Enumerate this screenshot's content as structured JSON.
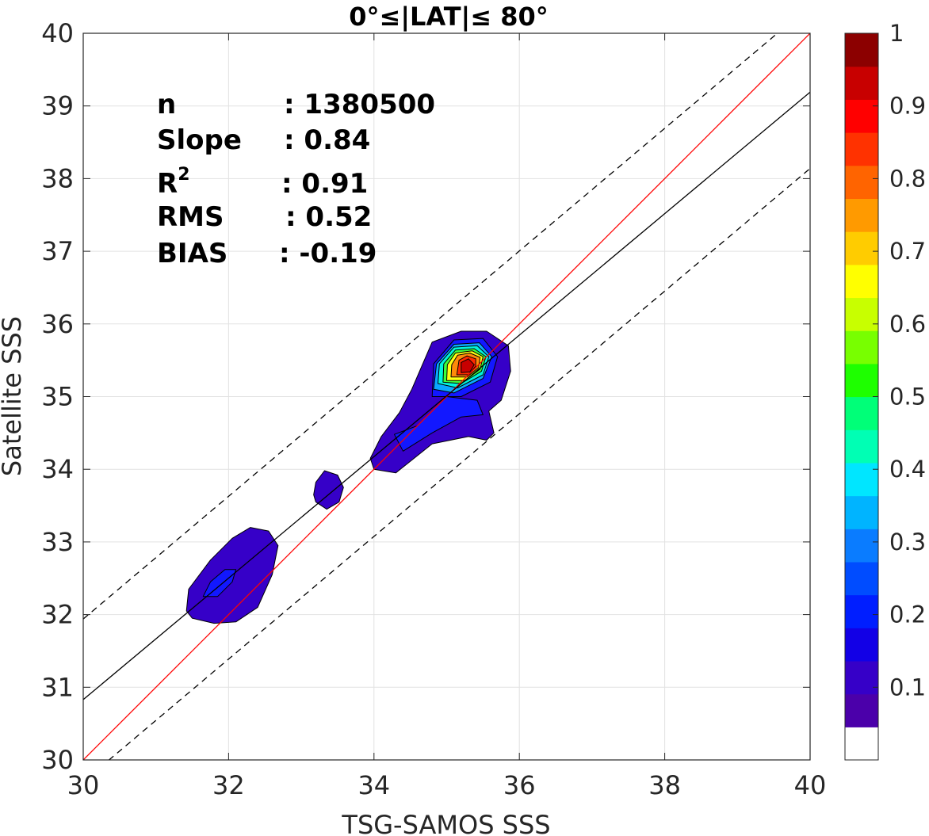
{
  "chart_data": {
    "type": "contour",
    "title": "0°≤|LAT|≤ 80°",
    "xlabel": "TSG-SAMOS SSS",
    "ylabel": "Satellite SSS",
    "xlim": [
      30,
      40
    ],
    "ylim": [
      30,
      40
    ],
    "xticks": [
      "30",
      "32",
      "34",
      "36",
      "38",
      "40"
    ],
    "yticks": [
      "30",
      "31",
      "32",
      "33",
      "34",
      "35",
      "36",
      "37",
      "38",
      "39",
      "40"
    ],
    "grid": true,
    "stats": [
      {
        "label": "n",
        "value": ": 1380500"
      },
      {
        "label": "Slope",
        "value": ": 0.84"
      },
      {
        "label": "R",
        "sup": "2",
        "value": ": 0.91"
      },
      {
        "label": "RMS",
        "value": ": 0.52"
      },
      {
        "label": "BIAS",
        "value": ": -0.19"
      }
    ],
    "lines": {
      "one_to_one": {
        "color": "#ff0000",
        "x": [
          30,
          40
        ],
        "y": [
          30,
          40
        ]
      },
      "regression": {
        "color": "#000000",
        "x": [
          30,
          40
        ],
        "y": [
          30.83,
          39.19
        ]
      },
      "upper_bound": {
        "color": "#000000",
        "style": "dashed",
        "x": [
          30,
          40
        ],
        "y": [
          31.94,
          40.38
        ]
      },
      "lower_bound": {
        "color": "#000000",
        "style": "dashed",
        "x": [
          30,
          40
        ],
        "y": [
          29.7,
          38.14
        ]
      }
    },
    "contour_levels": [
      {
        "level": 0.05,
        "color": "#3600c8",
        "polygons": [
          [
            [
              31.5,
              31.95
            ],
            [
              31.8,
              31.88
            ],
            [
              32.1,
              31.9
            ],
            [
              32.4,
              32.1
            ],
            [
              32.6,
              32.55
            ],
            [
              32.68,
              32.95
            ],
            [
              32.55,
              33.15
            ],
            [
              32.3,
              33.2
            ],
            [
              32.05,
              33.05
            ],
            [
              31.75,
              32.75
            ],
            [
              31.45,
              32.35
            ],
            [
              31.42,
              32.05
            ]
          ],
          [
            [
              33.2,
              33.55
            ],
            [
              33.35,
              33.45
            ],
            [
              33.52,
              33.55
            ],
            [
              33.58,
              33.75
            ],
            [
              33.5,
              33.92
            ],
            [
              33.32,
              33.98
            ],
            [
              33.2,
              33.82
            ],
            [
              33.17,
              33.65
            ]
          ],
          [
            [
              34.0,
              34.0
            ],
            [
              34.3,
              33.95
            ],
            [
              34.8,
              34.35
            ],
            [
              35.3,
              34.45
            ],
            [
              35.55,
              34.4
            ],
            [
              35.65,
              34.5
            ],
            [
              35.58,
              34.8
            ],
            [
              35.75,
              34.95
            ],
            [
              35.88,
              35.35
            ],
            [
              35.85,
              35.7
            ],
            [
              35.55,
              35.9
            ],
            [
              35.2,
              35.9
            ],
            [
              34.8,
              35.75
            ],
            [
              34.52,
              35.1
            ],
            [
              34.35,
              34.78
            ],
            [
              34.1,
              34.45
            ],
            [
              33.95,
              34.15
            ]
          ]
        ]
      },
      {
        "level": 0.15,
        "color": "#1218ff",
        "polygons": [
          [
            [
              31.65,
              32.25
            ],
            [
              31.85,
              32.25
            ],
            [
              32.05,
              32.45
            ],
            [
              32.1,
              32.62
            ],
            [
              31.95,
              32.62
            ],
            [
              31.75,
              32.45
            ]
          ],
          [
            [
              34.4,
              34.25
            ],
            [
              34.8,
              34.5
            ],
            [
              35.2,
              34.72
            ],
            [
              35.5,
              34.75
            ],
            [
              35.42,
              34.95
            ],
            [
              35.0,
              35.0
            ],
            [
              34.6,
              34.6
            ],
            [
              34.28,
              34.48
            ]
          ],
          [
            [
              34.8,
              35.0
            ],
            [
              35.2,
              35.0
            ],
            [
              35.6,
              35.2
            ],
            [
              35.7,
              35.55
            ],
            [
              35.5,
              35.8
            ],
            [
              35.1,
              35.78
            ],
            [
              34.82,
              35.45
            ]
          ]
        ]
      },
      {
        "level": 0.25,
        "color": "#0aa8ff",
        "polygons": [
          [
            [
              34.82,
              35.1
            ],
            [
              35.1,
              35.05
            ],
            [
              35.5,
              35.25
            ],
            [
              35.62,
              35.55
            ],
            [
              35.45,
              35.74
            ],
            [
              35.1,
              35.72
            ],
            [
              34.86,
              35.45
            ]
          ]
        ]
      },
      {
        "level": 0.35,
        "color": "#00f5dc",
        "polygons": [
          [
            [
              34.88,
              35.18
            ],
            [
              35.15,
              35.12
            ],
            [
              35.5,
              35.3
            ],
            [
              35.58,
              35.55
            ],
            [
              35.42,
              35.7
            ],
            [
              35.1,
              35.68
            ],
            [
              34.9,
              35.45
            ]
          ]
        ]
      },
      {
        "level": 0.45,
        "color": "#3cff3c",
        "polygons": [
          [
            [
              34.95,
              35.2
            ],
            [
              35.2,
              35.18
            ],
            [
              35.48,
              35.35
            ],
            [
              35.54,
              35.55
            ],
            [
              35.38,
              35.66
            ],
            [
              35.12,
              35.64
            ],
            [
              34.96,
              35.45
            ]
          ]
        ]
      },
      {
        "level": 0.6,
        "color": "#ffff14",
        "polygons": [
          [
            [
              35.0,
              35.22
            ],
            [
              35.25,
              35.22
            ],
            [
              35.46,
              35.38
            ],
            [
              35.5,
              35.55
            ],
            [
              35.35,
              35.63
            ],
            [
              35.12,
              35.6
            ],
            [
              35.01,
              35.44
            ]
          ]
        ]
      },
      {
        "level": 0.75,
        "color": "#ff8a0a",
        "polygons": [
          [
            [
              35.06,
              35.27
            ],
            [
              35.28,
              35.27
            ],
            [
              35.44,
              35.4
            ],
            [
              35.46,
              35.54
            ],
            [
              35.32,
              35.6
            ],
            [
              35.15,
              35.57
            ],
            [
              35.07,
              35.44
            ]
          ]
        ]
      },
      {
        "level": 0.88,
        "color": "#ff2a00",
        "polygons": [
          [
            [
              35.14,
              35.3
            ],
            [
              35.3,
              35.3
            ],
            [
              35.4,
              35.42
            ],
            [
              35.4,
              35.52
            ],
            [
              35.28,
              35.56
            ],
            [
              35.17,
              35.5
            ]
          ]
        ]
      },
      {
        "level": 0.97,
        "color": "#c80000",
        "polygons": [
          [
            [
              35.2,
              35.33
            ],
            [
              35.32,
              35.34
            ],
            [
              35.38,
              35.44
            ],
            [
              35.3,
              35.52
            ],
            [
              35.2,
              35.47
            ]
          ]
        ]
      }
    ],
    "colorbar": {
      "range": [
        0,
        1
      ],
      "ticks": [
        "0.1",
        "0.2",
        "0.3",
        "0.4",
        "0.5",
        "0.6",
        "0.7",
        "0.8",
        "0.9",
        "1"
      ],
      "colors": [
        "#ffffff",
        "#4b00aa",
        "#3600c8",
        "#1200e6",
        "#001eff",
        "#004cff",
        "#0a7cff",
        "#00b4ff",
        "#00e6ff",
        "#00ffb4",
        "#00ff78",
        "#1eff00",
        "#78ff00",
        "#c8ff00",
        "#ffff00",
        "#ffcc00",
        "#ff9a00",
        "#ff6400",
        "#ff3200",
        "#ff0000",
        "#c80000",
        "#8c0000"
      ]
    }
  }
}
